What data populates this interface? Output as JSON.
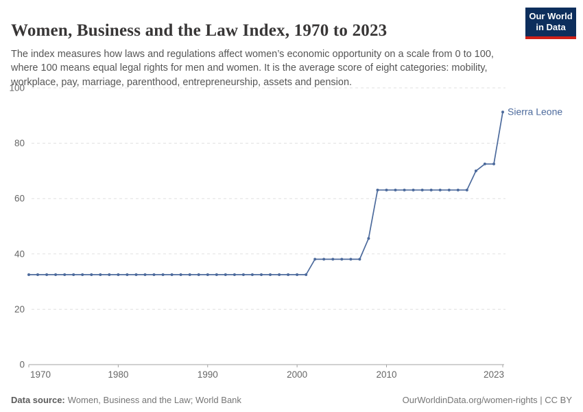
{
  "header": {
    "title": "Women, Business and the Law Index, 1970 to 2023",
    "subtitle": "The index measures how laws and regulations affect women’s economic opportunity on a scale from 0 to 100, where 100 means equal legal rights for men and women. It is the average score of eight categories: mobility, workplace, pay, marriage, parenthood, entrepreneurship, assets and pension.",
    "logo_line1": "Our World",
    "logo_line2": "in Data"
  },
  "footer": {
    "source_label": "Data source:",
    "source_text": "Women, Business and the Law; World Bank",
    "attribution": "OurWorldinData.org/women-rights | CC BY"
  },
  "colors": {
    "line": "#4C6A9C",
    "entity_label": "#4C6A9C",
    "grid": "#e0e0e0",
    "axis": "#a3a3a3",
    "tick_label": "#666666",
    "title": "#383636",
    "subtitle": "#555555",
    "footer": "#757575",
    "logo_bg": "#0d2e5c",
    "logo_stripe": "#cf2017"
  },
  "chart_data": {
    "type": "line",
    "title": "Women, Business and the Law Index, 1970 to 2023",
    "xlabel": "",
    "ylabel": "",
    "ylim": [
      0,
      100
    ],
    "xlim": [
      1970,
      2023
    ],
    "yticks": [
      0,
      20,
      40,
      60,
      80,
      100
    ],
    "xticks": [
      1970,
      1980,
      1990,
      2000,
      2010,
      2023
    ],
    "grid": true,
    "legend_position": "end-of-line",
    "x": [
      1970,
      1971,
      1972,
      1973,
      1974,
      1975,
      1976,
      1977,
      1978,
      1979,
      1980,
      1981,
      1982,
      1983,
      1984,
      1985,
      1986,
      1987,
      1988,
      1989,
      1990,
      1991,
      1992,
      1993,
      1994,
      1995,
      1996,
      1997,
      1998,
      1999,
      2000,
      2001,
      2002,
      2003,
      2004,
      2005,
      2006,
      2007,
      2008,
      2009,
      2010,
      2011,
      2012,
      2013,
      2014,
      2015,
      2016,
      2017,
      2018,
      2019,
      2020,
      2021,
      2022,
      2023
    ],
    "series": [
      {
        "name": "Sierra Leone",
        "values": [
          32.5,
          32.5,
          32.5,
          32.5,
          32.5,
          32.5,
          32.5,
          32.5,
          32.5,
          32.5,
          32.5,
          32.5,
          32.5,
          32.5,
          32.5,
          32.5,
          32.5,
          32.5,
          32.5,
          32.5,
          32.5,
          32.5,
          32.5,
          32.5,
          32.5,
          32.5,
          32.5,
          32.5,
          32.5,
          32.5,
          32.5,
          32.5,
          38.1,
          38.1,
          38.1,
          38.1,
          38.1,
          38.1,
          45.6,
          63.1,
          63.1,
          63.1,
          63.1,
          63.1,
          63.1,
          63.1,
          63.1,
          63.1,
          63.1,
          63.1,
          70,
          72.5,
          72.5,
          91.3
        ]
      }
    ]
  }
}
